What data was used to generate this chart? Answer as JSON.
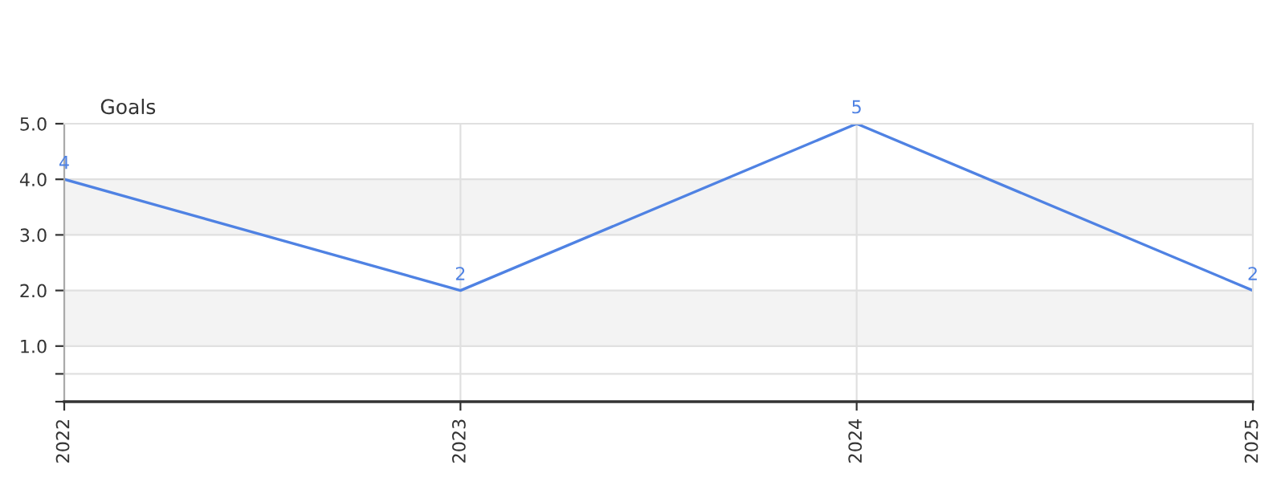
{
  "chart_data": {
    "type": "line",
    "ylabel": "Goals",
    "categories": [
      "2022",
      "2023",
      "2024",
      "2025"
    ],
    "series": [
      {
        "color": "#4f82e3",
        "values": [
          4,
          2,
          5,
          2
        ]
      }
    ],
    "ylim": [
      0,
      5
    ],
    "yticks": [
      {
        "value": 0,
        "label": null
      },
      {
        "value": 0.5,
        "label": null
      },
      {
        "value": 1,
        "label": "1.0"
      },
      {
        "value": 2,
        "label": "2.0"
      },
      {
        "value": 3,
        "label": "3.0"
      },
      {
        "value": 4,
        "label": "4.0"
      },
      {
        "value": 5,
        "label": "5.0"
      }
    ],
    "bands": [
      {
        "axis": "y",
        "from": 1,
        "to": 2,
        "color": "#f3f3f3"
      },
      {
        "axis": "y",
        "from": 3,
        "to": 4,
        "color": "#f3f3f3"
      }
    ],
    "grid": true,
    "data_labels": true,
    "marker": "none",
    "line_style": "solid"
  }
}
